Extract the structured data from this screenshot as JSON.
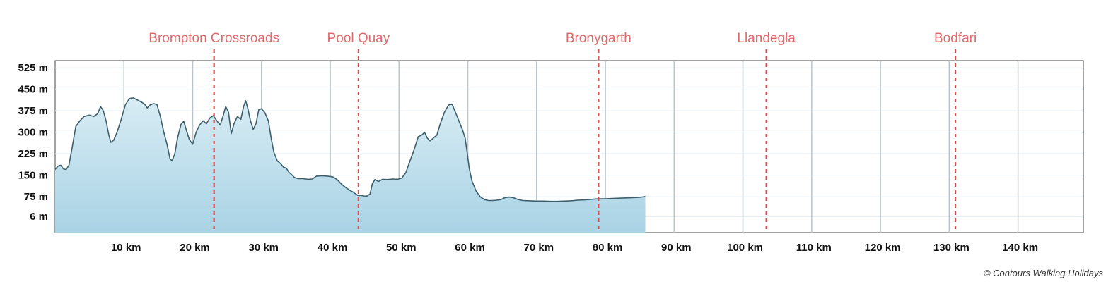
{
  "chart_data": {
    "type": "area",
    "title": "",
    "xlabel": "",
    "ylabel": "",
    "x_unit": "km",
    "y_unit": "m",
    "xlim": [
      0,
      149.5
    ],
    "ylim": [
      -50,
      550
    ],
    "y_ticks": [
      {
        "value": 6,
        "label": "6 m"
      },
      {
        "value": 75,
        "label": "75 m"
      },
      {
        "value": 150,
        "label": "150 m"
      },
      {
        "value": 225,
        "label": "225 m"
      },
      {
        "value": 300,
        "label": "300 m"
      },
      {
        "value": 375,
        "label": "375 m"
      },
      {
        "value": 450,
        "label": "450 m"
      },
      {
        "value": 525,
        "label": "525 m"
      }
    ],
    "x_ticks": [
      {
        "value": 10,
        "label": "10 km"
      },
      {
        "value": 20,
        "label": "20 km"
      },
      {
        "value": 30,
        "label": "30 km"
      },
      {
        "value": 40,
        "label": "40 km"
      },
      {
        "value": 50,
        "label": "50 km"
      },
      {
        "value": 60,
        "label": "60 km"
      },
      {
        "value": 70,
        "label": "70 km"
      },
      {
        "value": 80,
        "label": "80 km"
      },
      {
        "value": 90,
        "label": "90 km"
      },
      {
        "value": 100,
        "label": "100 km"
      },
      {
        "value": 110,
        "label": "110 km"
      },
      {
        "value": 120,
        "label": "120 km"
      },
      {
        "value": 130,
        "label": "130 km"
      },
      {
        "value": 140,
        "label": "140 km"
      }
    ],
    "waypoints": [
      {
        "name": "Brompton Crossroads",
        "km": 23.1
      },
      {
        "name": "Pool Quay",
        "km": 44.1
      },
      {
        "name": "Bronygarth",
        "km": 79.0
      },
      {
        "name": "Llandegla",
        "km": 103.4
      },
      {
        "name": "Bodfari",
        "km": 130.9
      }
    ],
    "series": [
      {
        "color": "#3c5f6b",
        "fill_top": "#d8ecf4",
        "fill_bottom": "#a9d3e5",
        "points": [
          [
            0,
            170
          ],
          [
            0.4,
            182
          ],
          [
            0.8,
            185
          ],
          [
            1.2,
            172
          ],
          [
            1.6,
            170
          ],
          [
            2.0,
            185
          ],
          [
            2.5,
            250
          ],
          [
            3.0,
            320
          ],
          [
            3.6,
            340
          ],
          [
            4.2,
            355
          ],
          [
            5.0,
            360
          ],
          [
            5.6,
            355
          ],
          [
            6.2,
            365
          ],
          [
            6.6,
            390
          ],
          [
            7.0,
            375
          ],
          [
            7.4,
            340
          ],
          [
            7.8,
            290
          ],
          [
            8.1,
            265
          ],
          [
            8.5,
            272
          ],
          [
            9.0,
            300
          ],
          [
            9.6,
            345
          ],
          [
            10.2,
            395
          ],
          [
            10.8,
            418
          ],
          [
            11.4,
            420
          ],
          [
            12.0,
            412
          ],
          [
            12.6,
            405
          ],
          [
            13.0,
            398
          ],
          [
            13.4,
            385
          ],
          [
            13.8,
            395
          ],
          [
            14.3,
            400
          ],
          [
            14.8,
            397
          ],
          [
            15.3,
            355
          ],
          [
            15.8,
            300
          ],
          [
            16.3,
            255
          ],
          [
            16.7,
            208
          ],
          [
            17.0,
            200
          ],
          [
            17.4,
            225
          ],
          [
            17.8,
            280
          ],
          [
            18.3,
            328
          ],
          [
            18.7,
            338
          ],
          [
            19.1,
            305
          ],
          [
            19.5,
            275
          ],
          [
            20.0,
            258
          ],
          [
            20.5,
            300
          ],
          [
            21.0,
            325
          ],
          [
            21.5,
            340
          ],
          [
            22.0,
            330
          ],
          [
            22.5,
            350
          ],
          [
            23.0,
            358
          ],
          [
            23.5,
            340
          ],
          [
            24.0,
            325
          ],
          [
            24.4,
            355
          ],
          [
            24.8,
            390
          ],
          [
            25.2,
            370
          ],
          [
            25.6,
            295
          ],
          [
            26.0,
            330
          ],
          [
            26.5,
            355
          ],
          [
            27.0,
            345
          ],
          [
            27.4,
            390
          ],
          [
            27.7,
            410
          ],
          [
            28.0,
            385
          ],
          [
            28.4,
            340
          ],
          [
            28.8,
            310
          ],
          [
            29.2,
            330
          ],
          [
            29.6,
            378
          ],
          [
            30.0,
            382
          ],
          [
            30.5,
            368
          ],
          [
            31.0,
            340
          ],
          [
            31.4,
            280
          ],
          [
            31.8,
            230
          ],
          [
            32.3,
            200
          ],
          [
            32.8,
            190
          ],
          [
            33.2,
            178
          ],
          [
            33.6,
            175
          ],
          [
            34.0,
            160
          ],
          [
            34.4,
            152
          ],
          [
            34.8,
            142
          ],
          [
            35.3,
            138
          ],
          [
            36.0,
            138
          ],
          [
            36.8,
            136
          ],
          [
            37.4,
            137
          ],
          [
            38.0,
            147
          ],
          [
            38.8,
            148
          ],
          [
            39.6,
            147
          ],
          [
            40.4,
            144
          ],
          [
            41.0,
            135
          ],
          [
            41.6,
            120
          ],
          [
            42.2,
            108
          ],
          [
            42.8,
            98
          ],
          [
            43.4,
            90
          ],
          [
            44.0,
            80
          ],
          [
            44.6,
            79
          ],
          [
            45.0,
            77
          ],
          [
            45.4,
            78
          ],
          [
            45.8,
            85
          ],
          [
            46.1,
            120
          ],
          [
            46.5,
            135
          ],
          [
            47.0,
            128
          ],
          [
            47.6,
            136
          ],
          [
            48.3,
            135
          ],
          [
            49.0,
            137
          ],
          [
            49.8,
            136
          ],
          [
            50.4,
            140
          ],
          [
            51.0,
            160
          ],
          [
            51.6,
            200
          ],
          [
            52.2,
            240
          ],
          [
            52.8,
            285
          ],
          [
            53.3,
            290
          ],
          [
            53.7,
            300
          ],
          [
            54.1,
            280
          ],
          [
            54.5,
            270
          ],
          [
            55.0,
            280
          ],
          [
            55.5,
            290
          ],
          [
            56.0,
            330
          ],
          [
            56.6,
            370
          ],
          [
            57.2,
            395
          ],
          [
            57.7,
            398
          ],
          [
            58.2,
            370
          ],
          [
            58.7,
            340
          ],
          [
            59.2,
            310
          ],
          [
            59.6,
            280
          ],
          [
            59.9,
            230
          ],
          [
            60.2,
            175
          ],
          [
            60.6,
            130
          ],
          [
            61.2,
            95
          ],
          [
            61.8,
            75
          ],
          [
            62.4,
            65
          ],
          [
            63.0,
            62
          ],
          [
            63.6,
            62
          ],
          [
            64.2,
            63
          ],
          [
            64.8,
            65
          ],
          [
            65.4,
            72
          ],
          [
            66.0,
            74
          ],
          [
            66.6,
            72
          ],
          [
            67.2,
            66
          ],
          [
            68.0,
            62
          ],
          [
            69.0,
            61
          ],
          [
            70.0,
            60
          ],
          [
            71.0,
            60
          ],
          [
            72.0,
            59
          ],
          [
            73.0,
            59
          ],
          [
            74.0,
            60
          ],
          [
            75.0,
            61
          ],
          [
            76.0,
            63
          ],
          [
            77.0,
            64
          ],
          [
            78.0,
            66
          ],
          [
            79.0,
            68
          ],
          [
            80.0,
            68
          ],
          [
            81.0,
            69
          ],
          [
            82.0,
            70
          ],
          [
            83.0,
            71
          ],
          [
            84.0,
            72
          ],
          [
            85.0,
            73
          ],
          [
            85.8,
            76
          ]
        ]
      }
    ]
  },
  "credit": "© Contours Walking Holidays"
}
